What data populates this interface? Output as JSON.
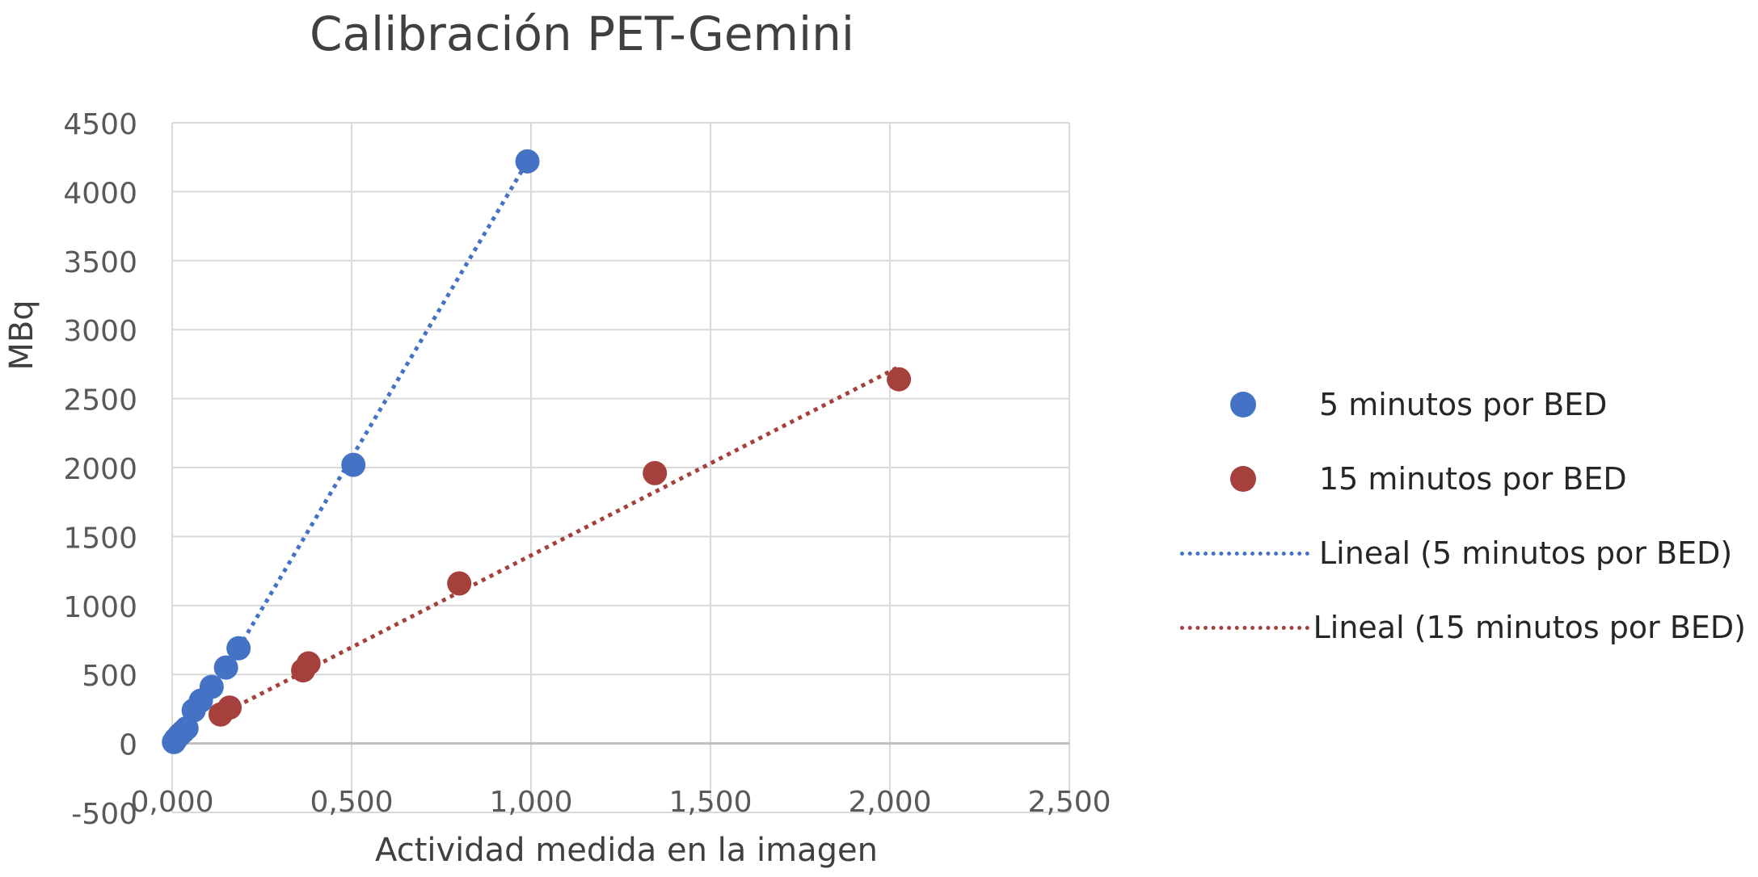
{
  "chart_data": {
    "type": "scatter",
    "title": "Calibración PET-Gemini",
    "xlabel": "Actividad medida en la imagen",
    "ylabel": "MBq",
    "xlim": [
      0,
      2.5
    ],
    "ylim": [
      -500,
      4500
    ],
    "x_ticks": [
      "0,000",
      "0,500",
      "1,000",
      "1,500",
      "2,000",
      "2,500"
    ],
    "y_ticks": [
      "-500",
      "0",
      "500",
      "1000",
      "1500",
      "2000",
      "2500",
      "3000",
      "3500",
      "4000",
      "4500"
    ],
    "grid": true,
    "legend_position": "right",
    "series": [
      {
        "name": "5 minutos por BED",
        "color": "#4472C4",
        "x": [
          0.005,
          0.01,
          0.02,
          0.03,
          0.04,
          0.06,
          0.08,
          0.11,
          0.15,
          0.185,
          0.505,
          0.99
        ],
        "y": [
          10,
          30,
          60,
          85,
          110,
          240,
          310,
          410,
          550,
          690,
          2020,
          4220
        ]
      },
      {
        "name": "15 minutos por BED",
        "color": "#A5403C",
        "x": [
          0.135,
          0.16,
          0.365,
          0.38,
          0.8,
          1.345,
          2.025
        ],
        "y": [
          210,
          260,
          530,
          580,
          1160,
          1960,
          2640
        ]
      }
    ],
    "trendlines": [
      {
        "name": "Lineal (5 minutos por BED)",
        "color": "#4472C4",
        "style": "dotted",
        "x": [
          0.185,
          0.99
        ],
        "y": [
          690,
          4220
        ]
      },
      {
        "name": "Lineal (15 minutos por BED)",
        "color": "#A5403C",
        "style": "dotted",
        "x": [
          0.135,
          2.025
        ],
        "y": [
          210,
          2730
        ]
      }
    ]
  }
}
